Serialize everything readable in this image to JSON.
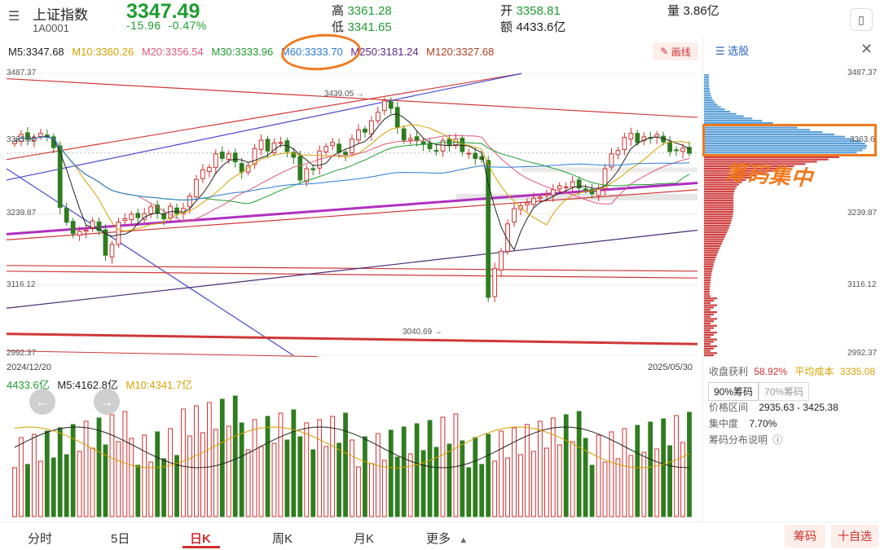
{
  "header": {
    "menu_icon": "menu-icon",
    "index_name": "上证指数",
    "index_code": "1A0001",
    "price": "3347.49",
    "change": "-15.96",
    "change_pct": "-0.47%",
    "high_label": "高",
    "high_value": "3361.28",
    "low_label": "低",
    "low_value": "3341.65",
    "open_label": "开",
    "open_value": "3358.81",
    "amount_label": "额",
    "amount_value": "4433.6亿",
    "volume_label": "量",
    "volume_value": "3.86亿",
    "device_icon": "phone-icon"
  },
  "ma_legend": [
    {
      "text": "M5:3347.68",
      "color": "#222222"
    },
    {
      "text": "M10:3360.26",
      "color": "#d6a000"
    },
    {
      "text": "M20:3356.54",
      "color": "#e05a7a"
    },
    {
      "text": "M30:3333.96",
      "color": "#1f9d2f"
    },
    {
      "text": "M60:3333.70",
      "color": "#2b7bd6"
    },
    {
      "text": "M250:3181.24",
      "color": "#5a2a8a"
    },
    {
      "text": "M120:3327.68",
      "color": "#b04020"
    }
  ],
  "draw_button": "画线",
  "side_panel": {
    "tab": "选股",
    "close_icon": "close-icon",
    "profit_label": "收盘获利",
    "profit_value": "58.92%",
    "avgcost_label": "平均成本",
    "avgcost_value": "3335.08",
    "chip_tabs": [
      "90%筹码",
      "70%筹码"
    ],
    "range_label": "价格区间",
    "range_value": "2935.63 - 3425.38",
    "concentration_label": "集中度",
    "concentration_value": "7.70%",
    "explain_label": "筹码分布说明"
  },
  "annotation": "筹码集中",
  "price_axis": {
    "left_labels": [
      "3487.37",
      "3363.62",
      "3239.87",
      "3116.12",
      "2992.37"
    ],
    "right_labels": [
      "3487.37",
      "3363.6",
      "3239.87",
      "3116.12",
      "2992.37"
    ],
    "high_marker": "3439.05",
    "low_marker": "3040.69"
  },
  "dates": {
    "start": "2024/12/20",
    "end": "2025/05/30"
  },
  "volume_legend": [
    {
      "text": "4433.6亿",
      "color": "#1f9d2f"
    },
    {
      "text": "M5:4162.8亿",
      "color": "#222222"
    },
    {
      "text": "M10:4341.7亿",
      "color": "#d6a000"
    }
  ],
  "bottom_tabs": [
    "分时",
    "5日",
    "日K",
    "周K",
    "月K",
    "更多"
  ],
  "chip_button": "筹码",
  "fav_button": "十自选",
  "chart_data": {
    "type": "candlestick",
    "y_range": [
      2992.37,
      3487.37
    ],
    "closes": [
      3368,
      3380,
      3371,
      3375,
      3382,
      3376,
      3357,
      3252,
      3226,
      3206,
      3210,
      3212,
      3228,
      3211,
      3168,
      3187,
      3226,
      3232,
      3240,
      3234,
      3241,
      3253,
      3242,
      3232,
      3254,
      3241,
      3250,
      3272,
      3301,
      3318,
      3322,
      3346,
      3338,
      3346,
      3332,
      3314,
      3325,
      3355,
      3370,
      3351,
      3365,
      3366,
      3350,
      3340,
      3300,
      3320,
      3318,
      3351,
      3359,
      3366,
      3349,
      3345,
      3372,
      3388,
      3384,
      3404,
      3419,
      3439,
      3426,
      3393,
      3370,
      3373,
      3369,
      3363,
      3355,
      3351,
      3369,
      3362,
      3372,
      3350,
      3347,
      3338,
      3336,
      3094,
      3145,
      3175,
      3223,
      3250,
      3255,
      3260,
      3268,
      3270,
      3275,
      3283,
      3290,
      3288,
      3297,
      3286,
      3282,
      3276,
      3285,
      3320,
      3346,
      3352,
      3375,
      3382,
      3366,
      3376,
      3374,
      3380,
      3367,
      3350,
      3352,
      3356,
      3347
    ]
  }
}
